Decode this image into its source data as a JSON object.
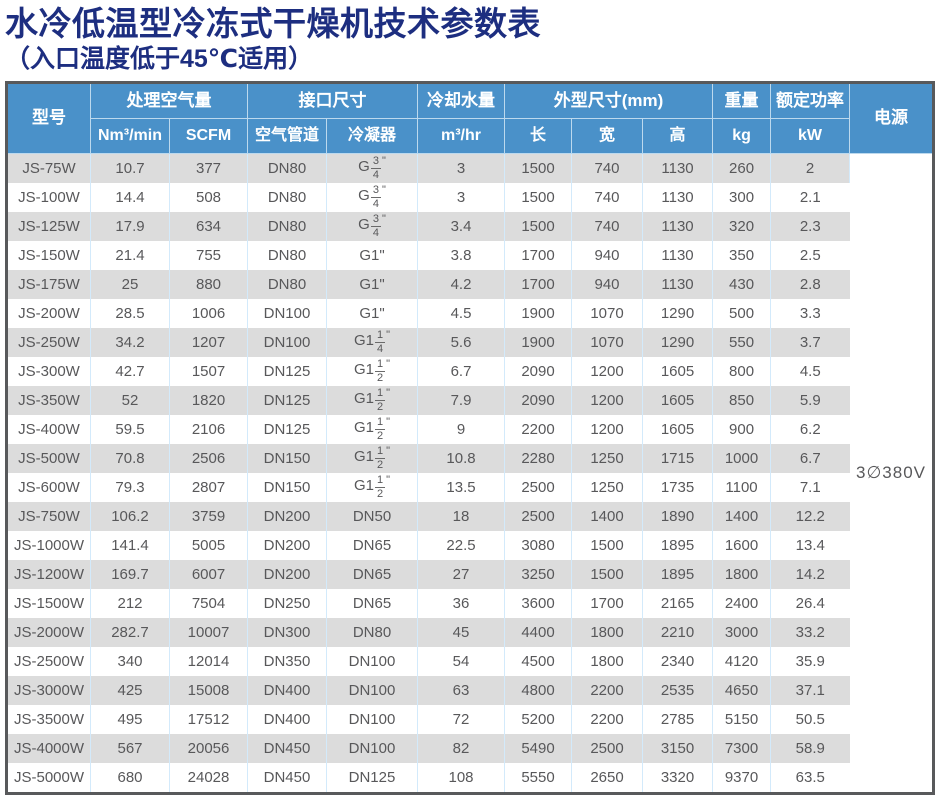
{
  "title": "水冷低温型冷冻式干燥机技术参数表",
  "subtitle": "（入口温度低于45℃适用）",
  "colors": {
    "title_text": "#1d2e80",
    "header_bg": "#4a91c9",
    "stripe_gray": "#dcdcdc",
    "cell_border_blue": "#d3eafb",
    "outer_border": "#58595b",
    "body_text": "#58585a"
  },
  "table": {
    "groups": {
      "model": "型号",
      "air_capacity": "处理空气量",
      "connection": "接口尺寸",
      "cooling_water": "冷却水量",
      "dimensions": "外型尺寸(mm)",
      "weight": "重量",
      "rated_power": "额定功率",
      "power_supply": "电源"
    },
    "subheaders": [
      "Nm³/min",
      "SCFM",
      "空气管道",
      "冷凝器",
      "m³/hr",
      "长",
      "宽",
      "高",
      "kg",
      "kW"
    ],
    "power_supply_value": "3∅380V",
    "rows": [
      [
        "JS-75W",
        "10.7",
        "377",
        "DN80",
        "G 3/4\"",
        "3",
        "1500",
        "740",
        "1130",
        "260",
        "2"
      ],
      [
        "JS-100W",
        "14.4",
        "508",
        "DN80",
        "G 3/4\"",
        "3",
        "1500",
        "740",
        "1130",
        "300",
        "2.1"
      ],
      [
        "JS-125W",
        "17.9",
        "634",
        "DN80",
        "G 3/4\"",
        "3.4",
        "1500",
        "740",
        "1130",
        "320",
        "2.3"
      ],
      [
        "JS-150W",
        "21.4",
        "755",
        "DN80",
        "G1\"",
        "3.8",
        "1700",
        "940",
        "1130",
        "350",
        "2.5"
      ],
      [
        "JS-175W",
        "25",
        "880",
        "DN80",
        "G1\"",
        "4.2",
        "1700",
        "940",
        "1130",
        "430",
        "2.8"
      ],
      [
        "JS-200W",
        "28.5",
        "1006",
        "DN100",
        "G1\"",
        "4.5",
        "1900",
        "1070",
        "1290",
        "500",
        "3.3"
      ],
      [
        "JS-250W",
        "34.2",
        "1207",
        "DN100",
        "G1 1/4\"",
        "5.6",
        "1900",
        "1070",
        "1290",
        "550",
        "3.7"
      ],
      [
        "JS-300W",
        "42.7",
        "1507",
        "DN125",
        "G1 1/2\"",
        "6.7",
        "2090",
        "1200",
        "1605",
        "800",
        "4.5"
      ],
      [
        "JS-350W",
        "52",
        "1820",
        "DN125",
        "G1 1/2\"",
        "7.9",
        "2090",
        "1200",
        "1605",
        "850",
        "5.9"
      ],
      [
        "JS-400W",
        "59.5",
        "2106",
        "DN125",
        "G1 1/2\"",
        "9",
        "2200",
        "1200",
        "1605",
        "900",
        "6.2"
      ],
      [
        "JS-500W",
        "70.8",
        "2506",
        "DN150",
        "G1 1/2\"",
        "10.8",
        "2280",
        "1250",
        "1715",
        "1000",
        "6.7"
      ],
      [
        "JS-600W",
        "79.3",
        "2807",
        "DN150",
        "G1 1/2\"",
        "13.5",
        "2500",
        "1250",
        "1735",
        "1100",
        "7.1"
      ],
      [
        "JS-750W",
        "106.2",
        "3759",
        "DN200",
        "DN50",
        "18",
        "2500",
        "1400",
        "1890",
        "1400",
        "12.2"
      ],
      [
        "JS-1000W",
        "141.4",
        "5005",
        "DN200",
        "DN65",
        "22.5",
        "3080",
        "1500",
        "1895",
        "1600",
        "13.4"
      ],
      [
        "JS-1200W",
        "169.7",
        "6007",
        "DN200",
        "DN65",
        "27",
        "3250",
        "1500",
        "1895",
        "1800",
        "14.2"
      ],
      [
        "JS-1500W",
        "212",
        "7504",
        "DN250",
        "DN65",
        "36",
        "3600",
        "1700",
        "2165",
        "2400",
        "26.4"
      ],
      [
        "JS-2000W",
        "282.7",
        "10007",
        "DN300",
        "DN80",
        "45",
        "4400",
        "1800",
        "2210",
        "3000",
        "33.2"
      ],
      [
        "JS-2500W",
        "340",
        "12014",
        "DN350",
        "DN100",
        "54",
        "4500",
        "1800",
        "2340",
        "4120",
        "35.9"
      ],
      [
        "JS-3000W",
        "425",
        "15008",
        "DN400",
        "DN100",
        "63",
        "4800",
        "2200",
        "2535",
        "4650",
        "37.1"
      ],
      [
        "JS-3500W",
        "495",
        "17512",
        "DN400",
        "DN100",
        "72",
        "5200",
        "2200",
        "2785",
        "5150",
        "50.5"
      ],
      [
        "JS-4000W",
        "567",
        "20056",
        "DN450",
        "DN100",
        "82",
        "5490",
        "2500",
        "3150",
        "7300",
        "58.9"
      ],
      [
        "JS-5000W",
        "680",
        "24028",
        "DN450",
        "DN125",
        "108",
        "5550",
        "2650",
        "3320",
        "9370",
        "63.5"
      ]
    ]
  }
}
